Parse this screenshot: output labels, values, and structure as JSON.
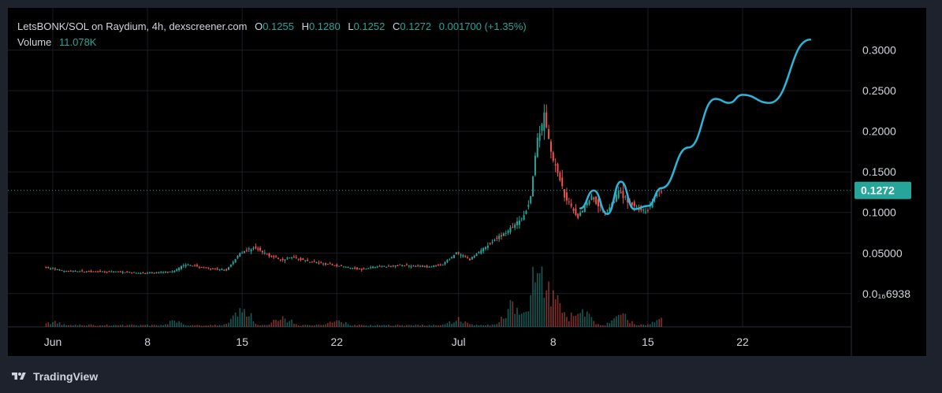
{
  "legend": {
    "title": "LetsBONK/SOL on Raydium, 4h, dexscreener.com",
    "o_label": "O",
    "o_value": "0.1255",
    "h_label": "H",
    "h_value": "0.1280",
    "l_label": "L",
    "l_value": "0.1252",
    "c_label": "C",
    "c_value": "0.1272",
    "change": "0.001700 (+1.35%)",
    "volume_label": "Volume",
    "volume_value": "11.078K"
  },
  "brand": "TradingView",
  "colors": {
    "up": "#26a69a",
    "down": "#ef5350",
    "projection": "#29b6d8",
    "price_badge": "#26a69a",
    "background": "#000000",
    "frame": "#1e222d"
  },
  "chart_data": {
    "type": "candlestick",
    "interval": "4h",
    "x_ticks": [
      "Jun",
      "8",
      "15",
      "22",
      "Jul",
      "8",
      "15",
      "22"
    ],
    "x_tick_dates": [
      "2025-06-01",
      "2025-06-08",
      "2025-06-15",
      "2025-06-22",
      "2025-07-01",
      "2025-07-08",
      "2025-07-15",
      "2025-07-22"
    ],
    "y_ticks": [
      {
        "value": 0.3,
        "label": "0.3000"
      },
      {
        "value": 0.25,
        "label": "0.2500"
      },
      {
        "value": 0.2,
        "label": "0.2000"
      },
      {
        "value": 0.15,
        "label": "0.1500"
      },
      {
        "value": 0.1,
        "label": "0.1000"
      },
      {
        "value": 0.05,
        "label": "0.05000"
      },
      {
        "value": 6.938e-07,
        "label": "0.0₁₆6938"
      }
    ],
    "ylim": [
      -0.0536,
      0.3346
    ],
    "last_price": 0.1272,
    "last_price_label": "0.1272",
    "price_series": [
      {
        "date": "2025-05-31",
        "price": 0.034
      },
      {
        "date": "2025-06-02",
        "price": 0.028
      },
      {
        "date": "2025-06-04",
        "price": 0.027
      },
      {
        "date": "2025-06-06",
        "price": 0.027
      },
      {
        "date": "2025-06-08",
        "price": 0.025
      },
      {
        "date": "2025-06-10",
        "price": 0.027
      },
      {
        "date": "2025-06-11",
        "price": 0.036
      },
      {
        "date": "2025-06-13",
        "price": 0.03
      },
      {
        "date": "2025-06-14",
        "price": 0.029
      },
      {
        "date": "2025-06-15",
        "price": 0.05
      },
      {
        "date": "2025-06-16",
        "price": 0.057
      },
      {
        "date": "2025-06-17",
        "price": 0.048
      },
      {
        "date": "2025-06-18",
        "price": 0.042
      },
      {
        "date": "2025-06-19",
        "price": 0.045
      },
      {
        "date": "2025-06-20",
        "price": 0.04
      },
      {
        "date": "2025-06-22",
        "price": 0.035
      },
      {
        "date": "2025-06-24",
        "price": 0.03
      },
      {
        "date": "2025-06-25",
        "price": 0.033
      },
      {
        "date": "2025-06-27",
        "price": 0.035
      },
      {
        "date": "2025-06-29",
        "price": 0.033
      },
      {
        "date": "2025-06-30",
        "price": 0.036
      },
      {
        "date": "2025-07-01",
        "price": 0.05
      },
      {
        "date": "2025-07-02",
        "price": 0.042
      },
      {
        "date": "2025-07-03",
        "price": 0.056
      },
      {
        "date": "2025-07-04",
        "price": 0.068
      },
      {
        "date": "2025-07-05",
        "price": 0.08
      },
      {
        "date": "2025-07-06",
        "price": 0.095
      },
      {
        "date": "2025-07-06T12:00",
        "price": 0.12
      },
      {
        "date": "2025-07-07",
        "price": 0.19
      },
      {
        "date": "2025-07-07T12:00",
        "price": 0.22
      },
      {
        "date": "2025-07-08",
        "price": 0.175
      },
      {
        "date": "2025-07-09",
        "price": 0.12
      },
      {
        "date": "2025-07-10",
        "price": 0.095
      },
      {
        "date": "2025-07-11",
        "price": 0.12
      },
      {
        "date": "2025-07-12",
        "price": 0.1
      },
      {
        "date": "2025-07-13",
        "price": 0.125
      },
      {
        "date": "2025-07-14",
        "price": 0.11
      },
      {
        "date": "2025-07-15",
        "price": 0.1
      },
      {
        "date": "2025-07-16",
        "price": 0.1272
      }
    ],
    "projection": [
      {
        "date": "2025-07-10",
        "price": 0.105
      },
      {
        "date": "2025-07-11",
        "price": 0.127
      },
      {
        "date": "2025-07-12",
        "price": 0.098
      },
      {
        "date": "2025-07-13",
        "price": 0.138
      },
      {
        "date": "2025-07-14",
        "price": 0.104
      },
      {
        "date": "2025-07-15",
        "price": 0.108
      },
      {
        "date": "2025-07-16",
        "price": 0.13
      },
      {
        "date": "2025-07-18",
        "price": 0.18
      },
      {
        "date": "2025-07-20",
        "price": 0.24
      },
      {
        "date": "2025-07-21",
        "price": 0.235
      },
      {
        "date": "2025-07-22",
        "price": 0.245
      },
      {
        "date": "2025-07-24",
        "price": 0.235
      },
      {
        "date": "2025-07-27",
        "price": 0.313
      }
    ],
    "volume_peaks": [
      {
        "date": "2025-06-01",
        "volume": 0.08
      },
      {
        "date": "2025-06-10",
        "volume": 0.1
      },
      {
        "date": "2025-06-15",
        "volume": 0.3
      },
      {
        "date": "2025-06-18",
        "volume": 0.15
      },
      {
        "date": "2025-06-22",
        "volume": 0.1
      },
      {
        "date": "2025-07-01",
        "volume": 0.12
      },
      {
        "date": "2025-07-05",
        "volume": 0.35
      },
      {
        "date": "2025-07-07",
        "volume": 1.0
      },
      {
        "date": "2025-07-08",
        "volume": 0.45
      },
      {
        "date": "2025-07-10",
        "volume": 0.3
      },
      {
        "date": "2025-07-13",
        "volume": 0.18
      },
      {
        "date": "2025-07-16",
        "volume": 0.12
      }
    ]
  }
}
